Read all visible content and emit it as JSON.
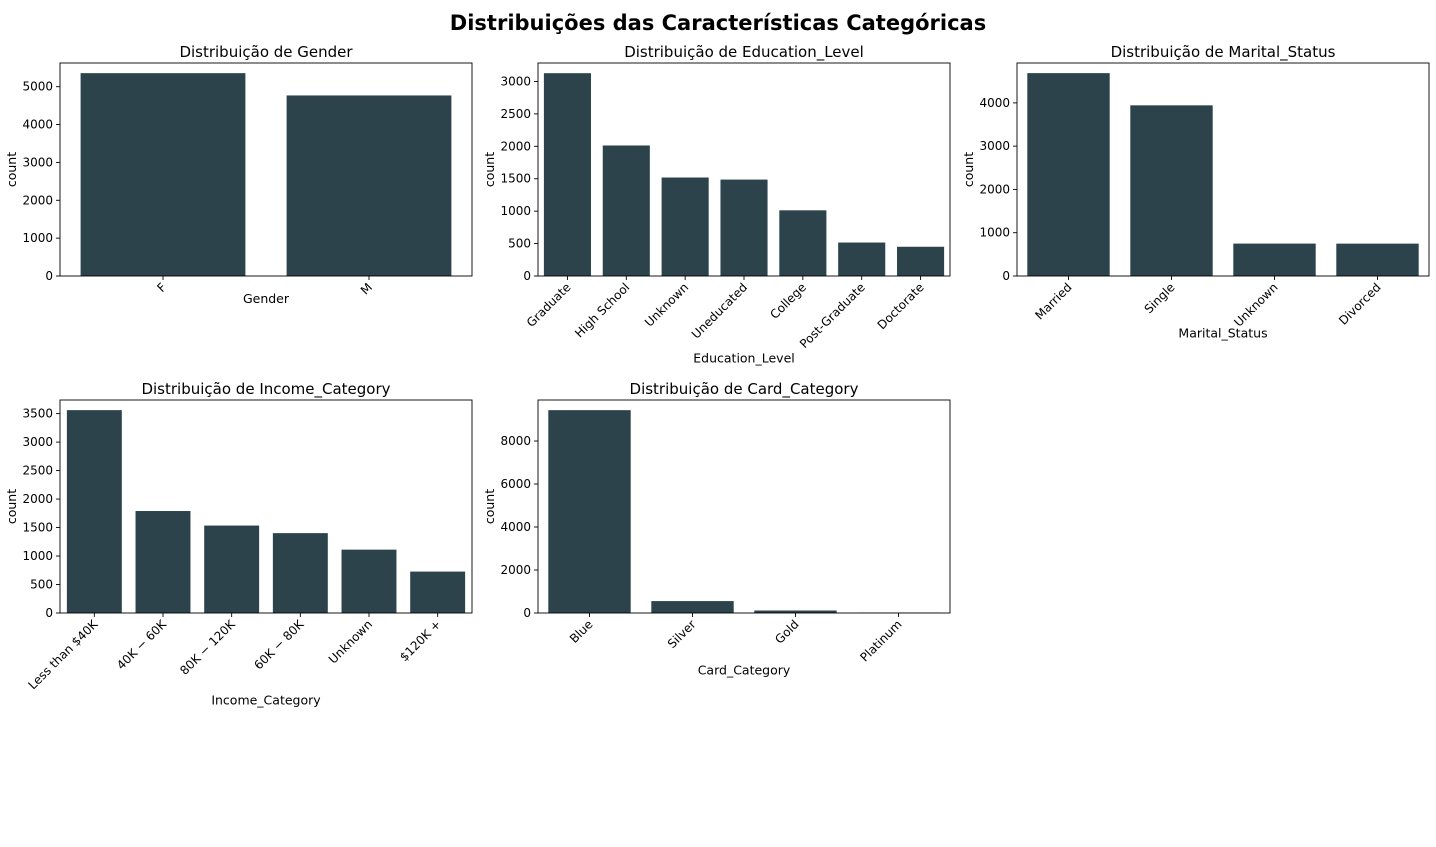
{
  "suptitle": "Distribuições das Características Categóricas",
  "bar_color": "#2c434c",
  "chart_data": [
    {
      "type": "bar",
      "title": "Distribuição de Gender",
      "xlabel": "Gender",
      "ylabel": "count",
      "categories": [
        "F",
        "M"
      ],
      "values": [
        5358,
        4769
      ],
      "ylim": [
        0,
        5626
      ],
      "yticks": [
        0,
        1000,
        2000,
        3000,
        4000,
        5000
      ],
      "xtick_rotation": 45
    },
    {
      "type": "bar",
      "title": "Distribuição de Education_Level",
      "xlabel": "Education_Level",
      "ylabel": "count",
      "categories": [
        "Graduate",
        "High School",
        "Unknown",
        "Uneducated",
        "College",
        "Post-Graduate",
        "Doctorate"
      ],
      "values": [
        3128,
        2013,
        1519,
        1487,
        1013,
        516,
        451
      ],
      "ylim": [
        0,
        3285
      ],
      "yticks": [
        0,
        500,
        1000,
        1500,
        2000,
        2500,
        3000
      ],
      "xtick_rotation": 45
    },
    {
      "type": "bar",
      "title": "Distribuição de Marital_Status",
      "xlabel": "Marital_Status",
      "ylabel": "count",
      "categories": [
        "Married",
        "Single",
        "Unknown",
        "Divorced"
      ],
      "values": [
        4687,
        3943,
        749,
        748
      ],
      "ylim": [
        0,
        4921
      ],
      "yticks": [
        0,
        1000,
        2000,
        3000,
        4000
      ],
      "xtick_rotation": 45
    },
    {
      "type": "bar",
      "title": "Distribuição de Income_Category",
      "xlabel": "Income_Category",
      "ylabel": "count",
      "categories": [
        "Less than $40K",
        "$40K - $60K",
        "$80K - $120K",
        "$60K - $80K",
        "Unknown",
        "$120K +"
      ],
      "tick_labels": [
        "Less than $40K",
        "40K − 60K",
        "80K − 120K",
        "60K − 80K",
        "Unknown",
        "$120K +"
      ],
      "values": [
        3561,
        1790,
        1535,
        1402,
        1112,
        727
      ],
      "ylim": [
        0,
        3739
      ],
      "yticks": [
        0,
        500,
        1000,
        1500,
        2000,
        2500,
        3000,
        3500
      ],
      "xtick_rotation": 45
    },
    {
      "type": "bar",
      "title": "Distribuição de Card_Category",
      "xlabel": "Card_Category",
      "ylabel": "count",
      "categories": [
        "Blue",
        "Silver",
        "Gold",
        "Platinum"
      ],
      "values": [
        9436,
        555,
        116,
        20
      ],
      "ylim": [
        0,
        9908
      ],
      "yticks": [
        0,
        2000,
        4000,
        6000,
        8000
      ],
      "xtick_rotation": 45
    }
  ]
}
